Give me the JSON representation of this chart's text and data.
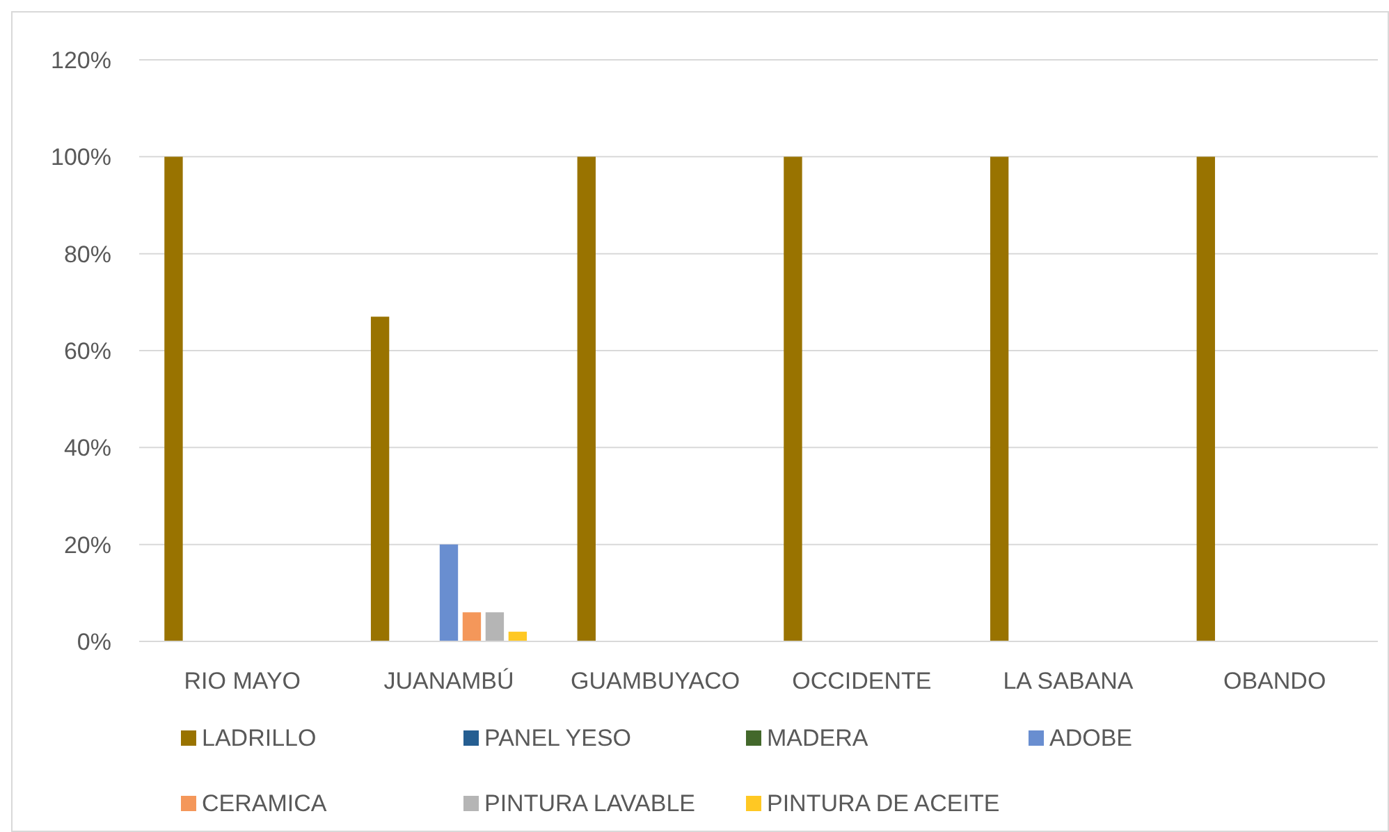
{
  "chart_data": {
    "type": "bar",
    "categories": [
      "RIO MAYO",
      "JUANAMBÚ",
      "GUAMBUYACO",
      "OCCIDENTE",
      "LA SABANA",
      "OBANDO"
    ],
    "series": [
      {
        "name": "LADRILLO",
        "color": "#997300",
        "values": [
          100,
          67,
          100,
          100,
          100,
          100
        ]
      },
      {
        "name": "PANEL YESO",
        "color": "#255e91",
        "values": [
          0,
          0,
          0,
          0,
          0,
          0
        ]
      },
      {
        "name": "MADERA",
        "color": "#43682b",
        "values": [
          0,
          0,
          0,
          0,
          0,
          0
        ]
      },
      {
        "name": "ADOBE",
        "color": "#698ed0",
        "values": [
          0,
          20,
          0,
          0,
          0,
          0
        ]
      },
      {
        "name": "CERAMICA",
        "color": "#f4975a",
        "values": [
          0,
          6,
          0,
          0,
          0,
          0
        ]
      },
      {
        "name": "PINTURA LAVABLE",
        "color": "#b5b5b5",
        "values": [
          0,
          6,
          0,
          0,
          0,
          0
        ]
      },
      {
        "name": "PINTURA DE ACEITE",
        "color": "#ffc823",
        "values": [
          0,
          2,
          0,
          0,
          0,
          0
        ]
      }
    ],
    "ylim": [
      0,
      120
    ],
    "yticks": [
      {
        "value": 0,
        "label": "0%"
      },
      {
        "value": 20,
        "label": "20%"
      },
      {
        "value": 40,
        "label": "40%"
      },
      {
        "value": 60,
        "label": "60%"
      },
      {
        "value": 80,
        "label": "80%"
      },
      {
        "value": 100,
        "label": "100%"
      },
      {
        "value": 120,
        "label": "120%"
      }
    ],
    "grid": "y",
    "legend": "bottom"
  }
}
